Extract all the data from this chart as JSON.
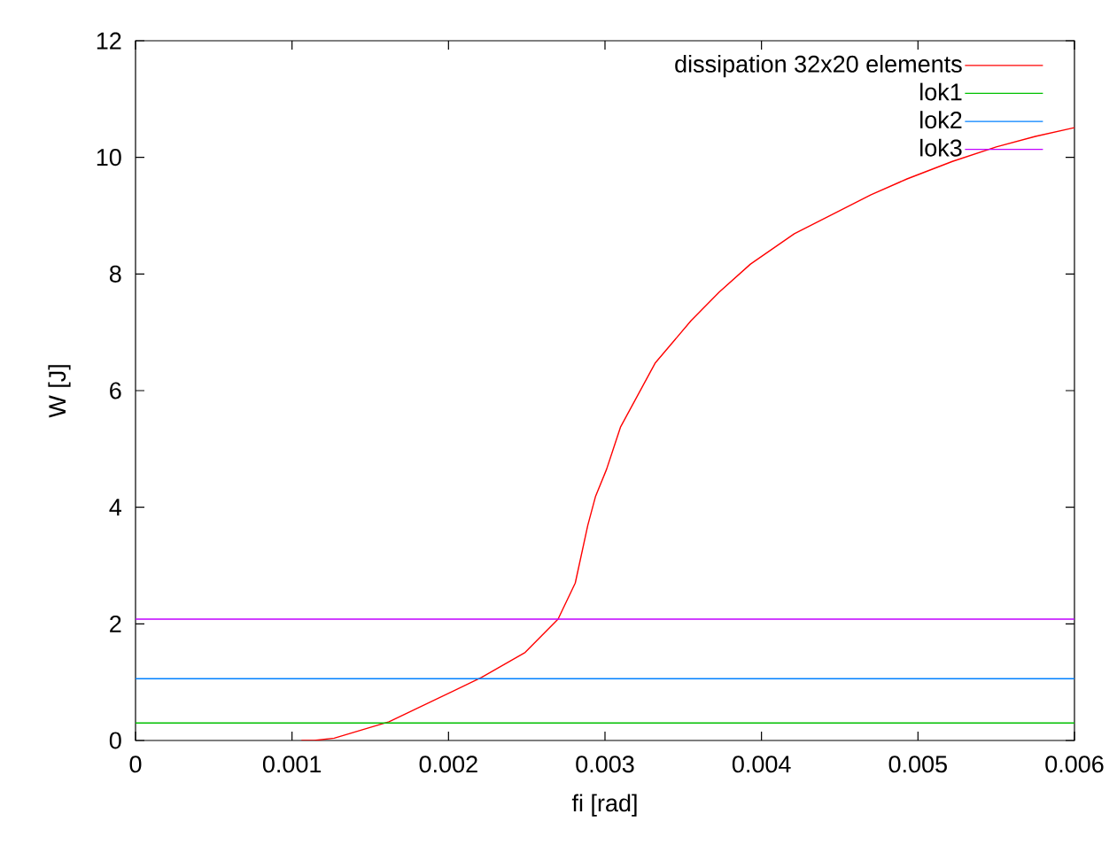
{
  "chart_data": {
    "type": "line",
    "xlabel": "fi [rad]",
    "ylabel": "W [J]",
    "xlim": [
      0,
      0.006
    ],
    "ylim": [
      0,
      12
    ],
    "xticks": [
      0,
      0.001,
      0.002,
      0.003,
      0.004,
      0.005,
      0.006
    ],
    "yticks": [
      0,
      2,
      4,
      6,
      8,
      10,
      12
    ],
    "grid": false,
    "legend": "top right",
    "series": [
      {
        "name": "dissipation 32x20 elements",
        "color": "#ff0000",
        "x": [
          0.00106,
          0.00114,
          0.00127,
          0.00162,
          0.00221,
          0.00249,
          0.0027,
          0.00281,
          0.00289,
          0.00294,
          0.00301,
          0.0031,
          0.00332,
          0.00355,
          0.00373,
          0.00393,
          0.00421,
          0.0047,
          0.00493,
          0.00522,
          0.0055,
          0.00575,
          0.006
        ],
        "values": [
          0,
          0,
          0.04,
          0.32,
          1.08,
          1.51,
          2.08,
          2.7,
          3.69,
          4.19,
          4.65,
          5.38,
          6.47,
          7.2,
          7.69,
          8.17,
          8.69,
          9.36,
          9.63,
          9.93,
          10.18,
          10.36,
          10.51
        ]
      },
      {
        "name": "lok1",
        "color": "#00c000",
        "x": [
          0,
          0.006
        ],
        "values": [
          0.3,
          0.3
        ]
      },
      {
        "name": "lok2",
        "color": "#0080ff",
        "x": [
          0,
          0.006
        ],
        "values": [
          1.06,
          1.06
        ]
      },
      {
        "name": "lok3",
        "color": "#c000ff",
        "x": [
          0,
          0.006
        ],
        "values": [
          2.08,
          2.08
        ]
      }
    ]
  }
}
